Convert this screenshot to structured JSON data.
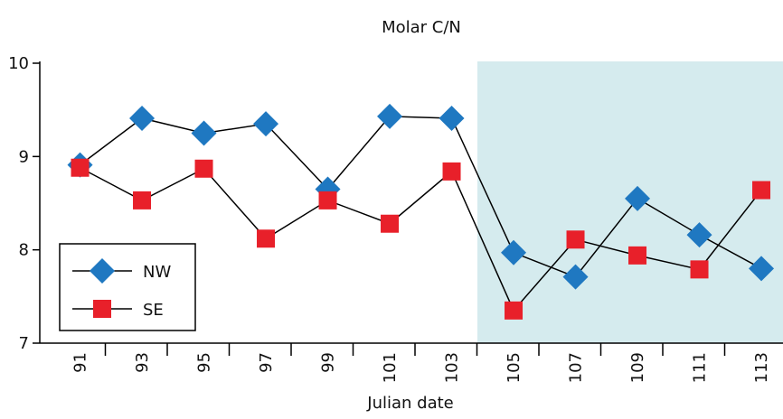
{
  "chart_data": {
    "type": "line",
    "title": "Molar C/N",
    "x_label": "Julian date",
    "categories": [
      "91",
      "93",
      "95",
      "97",
      "99",
      "101",
      "103",
      "105",
      "107",
      "109",
      "111",
      "113"
    ],
    "series": [
      {
        "name": "NW",
        "color": "#1f78c1",
        "marker": "diamond",
        "values": [
          8.91,
          9.41,
          9.25,
          9.35,
          8.65,
          9.43,
          9.41,
          7.97,
          7.71,
          8.55,
          8.16,
          7.8
        ]
      },
      {
        "name": "SE",
        "color": "#e8202a",
        "marker": "square",
        "values": [
          8.88,
          8.53,
          8.87,
          8.12,
          8.53,
          8.28,
          8.84,
          7.35,
          8.11,
          7.94,
          7.79,
          8.64
        ]
      }
    ],
    "ylim": [
      7,
      10
    ],
    "yticks": [
      7,
      8,
      9,
      10
    ],
    "legend": "lower-left"
  }
}
